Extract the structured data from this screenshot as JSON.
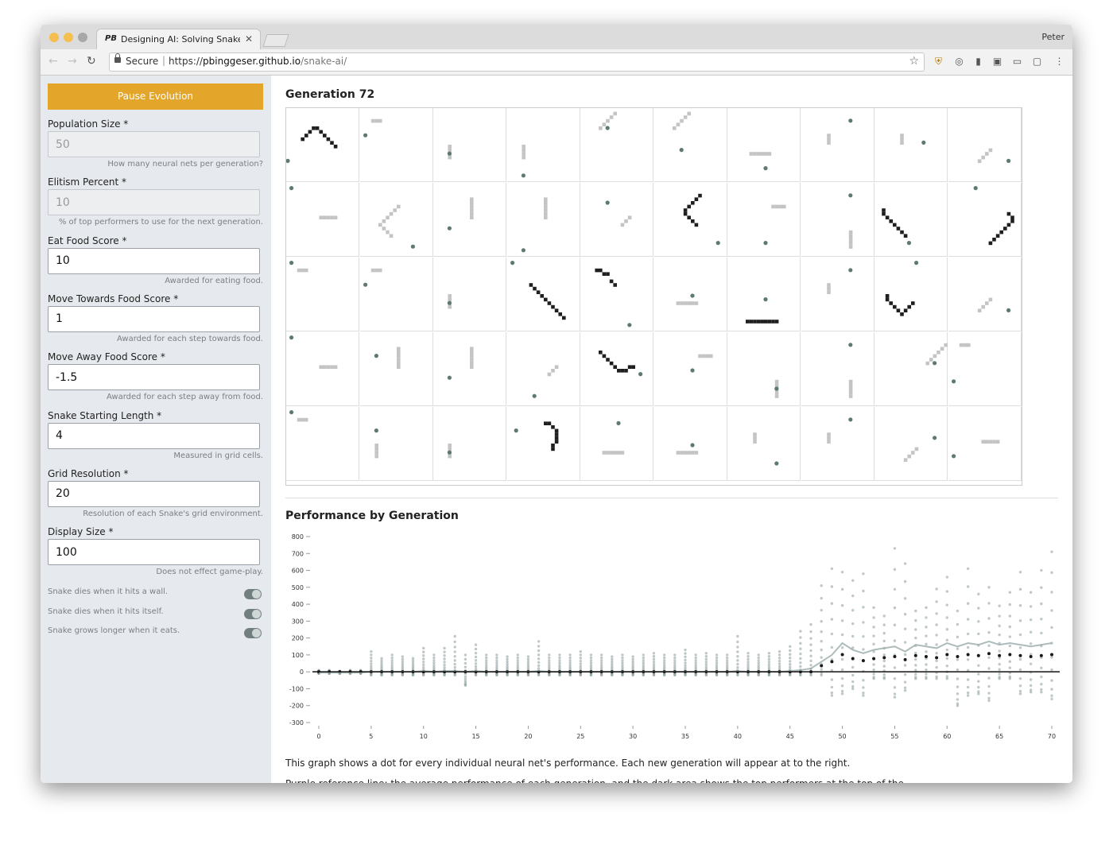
{
  "browser": {
    "tab_title": "Designing AI: Solving Snake W",
    "tab_favicon": "PB",
    "profile_name": "Peter",
    "secure_label": "Secure",
    "url_scheme": "https://",
    "url_host": "pbinggeser.github.io",
    "url_path": "/snake-ai/"
  },
  "sidebar": {
    "pause_button": "Pause Evolution",
    "fields": [
      {
        "label": "Population Size *",
        "value": "50",
        "help": "How many neural nets per generation?",
        "disabled": true
      },
      {
        "label": "Elitism Percent *",
        "value": "10",
        "help": "% of top performers to use for the next generation.",
        "disabled": true
      },
      {
        "label": "Eat Food Score *",
        "value": "10",
        "help": "Awarded for eating food.",
        "disabled": false
      },
      {
        "label": "Move Towards Food Score *",
        "value": "1",
        "help": "Awarded for each step towards food.",
        "disabled": false
      },
      {
        "label": "Move Away Food Score *",
        "value": "-1.5",
        "help": "Awarded for each step away from food.",
        "disabled": false
      },
      {
        "label": "Snake Starting Length *",
        "value": "4",
        "help": "Measured in grid cells.",
        "disabled": false
      },
      {
        "label": "Grid Resolution *",
        "value": "20",
        "help": "Resolution of each Snake's grid environment.",
        "disabled": false
      },
      {
        "label": "Display Size *",
        "value": "100",
        "help": "Does not effect game-play.",
        "disabled": false
      }
    ],
    "toggles": [
      {
        "label": "Snake dies when it hits a wall.",
        "on": true
      },
      {
        "label": "Snake dies when it hits itself.",
        "on": true
      },
      {
        "label": "Snake grows longer when it eats.",
        "on": true
      }
    ]
  },
  "main": {
    "generation_title": "Generation 72",
    "performance_title": "Performance by Generation",
    "caption": "This graph shows a dot for every individual neural net's performance. Each new generation will appear at to the right.",
    "caption2": "Purple reference line: the average performance of each generation, and the dark area shows the top performers at the top of the graph."
  },
  "colors": {
    "accent": "#e3a62b",
    "snake_dark": "#1f1f1f",
    "snake_light": "#c4c4c4",
    "food": "#5d7a6e",
    "dot": "#8a9a9a",
    "toggle": "#71807f"
  },
  "chart_data": {
    "type": "scatter",
    "title": "Performance by Generation",
    "xlabel": "",
    "ylabel": "",
    "xlim": [
      0,
      70
    ],
    "ylim": [
      -300,
      800
    ],
    "xticks": [
      0,
      5,
      10,
      15,
      20,
      25,
      30,
      35,
      40,
      45,
      50,
      55,
      60,
      65,
      70
    ],
    "yticks": [
      800,
      700,
      600,
      500,
      400,
      300,
      200,
      100,
      0,
      -100,
      -200,
      -300
    ],
    "generations": [
      {
        "x": 0,
        "max": 10,
        "min": -10,
        "mean": -5
      },
      {
        "x": 1,
        "max": 10,
        "min": -10,
        "mean": -5
      },
      {
        "x": 2,
        "max": 5,
        "min": -10,
        "mean": -5
      },
      {
        "x": 3,
        "max": 10,
        "min": -10,
        "mean": -5
      },
      {
        "x": 4,
        "max": 10,
        "min": -10,
        "mean": -5
      },
      {
        "x": 5,
        "max": 120,
        "min": -20,
        "mean": 0
      },
      {
        "x": 6,
        "max": 80,
        "min": -20,
        "mean": 0
      },
      {
        "x": 7,
        "max": 100,
        "min": -20,
        "mean": 0
      },
      {
        "x": 8,
        "max": 90,
        "min": -20,
        "mean": 0
      },
      {
        "x": 9,
        "max": 80,
        "min": -20,
        "mean": 0
      },
      {
        "x": 10,
        "max": 140,
        "min": -20,
        "mean": 5
      },
      {
        "x": 11,
        "max": 100,
        "min": -20,
        "mean": 0
      },
      {
        "x": 12,
        "max": 140,
        "min": -20,
        "mean": 5
      },
      {
        "x": 13,
        "max": 210,
        "min": -20,
        "mean": 5
      },
      {
        "x": 14,
        "max": 100,
        "min": -80,
        "mean": 0
      },
      {
        "x": 15,
        "max": 160,
        "min": -20,
        "mean": 5
      },
      {
        "x": 16,
        "max": 100,
        "min": -20,
        "mean": 0
      },
      {
        "x": 17,
        "max": 100,
        "min": -20,
        "mean": 0
      },
      {
        "x": 18,
        "max": 90,
        "min": -20,
        "mean": 0
      },
      {
        "x": 19,
        "max": 100,
        "min": -20,
        "mean": 0
      },
      {
        "x": 20,
        "max": 90,
        "min": -20,
        "mean": 0
      },
      {
        "x": 21,
        "max": 180,
        "min": -20,
        "mean": 5
      },
      {
        "x": 22,
        "max": 100,
        "min": -20,
        "mean": 0
      },
      {
        "x": 23,
        "max": 100,
        "min": -20,
        "mean": 0
      },
      {
        "x": 24,
        "max": 100,
        "min": -20,
        "mean": 0
      },
      {
        "x": 25,
        "max": 120,
        "min": -20,
        "mean": 0
      },
      {
        "x": 26,
        "max": 100,
        "min": -20,
        "mean": 0
      },
      {
        "x": 27,
        "max": 100,
        "min": -20,
        "mean": 0
      },
      {
        "x": 28,
        "max": 90,
        "min": -20,
        "mean": 0
      },
      {
        "x": 29,
        "max": 100,
        "min": -20,
        "mean": 0
      },
      {
        "x": 30,
        "max": 90,
        "min": -20,
        "mean": 0
      },
      {
        "x": 31,
        "max": 100,
        "min": -20,
        "mean": 0
      },
      {
        "x": 32,
        "max": 110,
        "min": -20,
        "mean": 0
      },
      {
        "x": 33,
        "max": 100,
        "min": -20,
        "mean": 0
      },
      {
        "x": 34,
        "max": 100,
        "min": -20,
        "mean": 0
      },
      {
        "x": 35,
        "max": 130,
        "min": -20,
        "mean": 0
      },
      {
        "x": 36,
        "max": 100,
        "min": -20,
        "mean": 0
      },
      {
        "x": 37,
        "max": 110,
        "min": -20,
        "mean": 0
      },
      {
        "x": 38,
        "max": 100,
        "min": -20,
        "mean": 0
      },
      {
        "x": 39,
        "max": 100,
        "min": -20,
        "mean": 0
      },
      {
        "x": 40,
        "max": 210,
        "min": -20,
        "mean": 5
      },
      {
        "x": 41,
        "max": 110,
        "min": -20,
        "mean": 0
      },
      {
        "x": 42,
        "max": 100,
        "min": -20,
        "mean": 0
      },
      {
        "x": 43,
        "max": 110,
        "min": -20,
        "mean": 0
      },
      {
        "x": 44,
        "max": 120,
        "min": -20,
        "mean": 0
      },
      {
        "x": 45,
        "max": 150,
        "min": -20,
        "mean": 5
      },
      {
        "x": 46,
        "max": 240,
        "min": -20,
        "mean": 10
      },
      {
        "x": 47,
        "max": 280,
        "min": -20,
        "mean": 20
      },
      {
        "x": 48,
        "max": 510,
        "min": -20,
        "mean": 60
      },
      {
        "x": 49,
        "max": 610,
        "min": -140,
        "mean": 100
      },
      {
        "x": 50,
        "max": 590,
        "min": -130,
        "mean": 170
      },
      {
        "x": 51,
        "max": 540,
        "min": -100,
        "mean": 130
      },
      {
        "x": 52,
        "max": 580,
        "min": -140,
        "mean": 110
      },
      {
        "x": 53,
        "max": 380,
        "min": -40,
        "mean": 130
      },
      {
        "x": 54,
        "max": 330,
        "min": -40,
        "mean": 140
      },
      {
        "x": 55,
        "max": 730,
        "min": -150,
        "mean": 150
      },
      {
        "x": 56,
        "max": 640,
        "min": -110,
        "mean": 120
      },
      {
        "x": 57,
        "max": 360,
        "min": -40,
        "mean": 160
      },
      {
        "x": 58,
        "max": 380,
        "min": -40,
        "mean": 150
      },
      {
        "x": 59,
        "max": 490,
        "min": -40,
        "mean": 140
      },
      {
        "x": 60,
        "max": 560,
        "min": -40,
        "mean": 170
      },
      {
        "x": 61,
        "max": 360,
        "min": -200,
        "mean": 150
      },
      {
        "x": 62,
        "max": 610,
        "min": -140,
        "mean": 170
      },
      {
        "x": 63,
        "max": 460,
        "min": -130,
        "mean": 160
      },
      {
        "x": 64,
        "max": 500,
        "min": -170,
        "mean": 180
      },
      {
        "x": 65,
        "max": 390,
        "min": -40,
        "mean": 160
      },
      {
        "x": 66,
        "max": 470,
        "min": -40,
        "mean": 170
      },
      {
        "x": 67,
        "max": 590,
        "min": -130,
        "mean": 160
      },
      {
        "x": 68,
        "max": 470,
        "min": -120,
        "mean": 150
      },
      {
        "x": 69,
        "max": 600,
        "min": -120,
        "mean": 160
      },
      {
        "x": 70,
        "max": 710,
        "min": -160,
        "mean": 170
      }
    ]
  }
}
